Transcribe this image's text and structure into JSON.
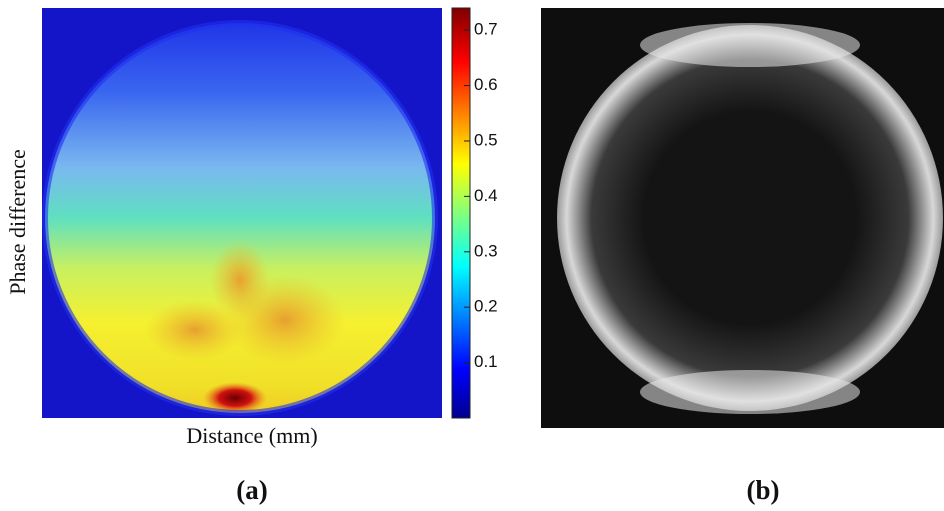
{
  "chart_data": {
    "type": "heatmap",
    "xlabel": "Distance (mm)",
    "ylabel": "Phase difference",
    "colorbar": {
      "lim": [
        0,
        0.74
      ],
      "ticks": [
        0.1,
        0.2,
        0.3,
        0.4,
        0.5,
        0.6,
        0.7
      ]
    }
  },
  "captions": [
    "(a)",
    "(b)"
  ]
}
